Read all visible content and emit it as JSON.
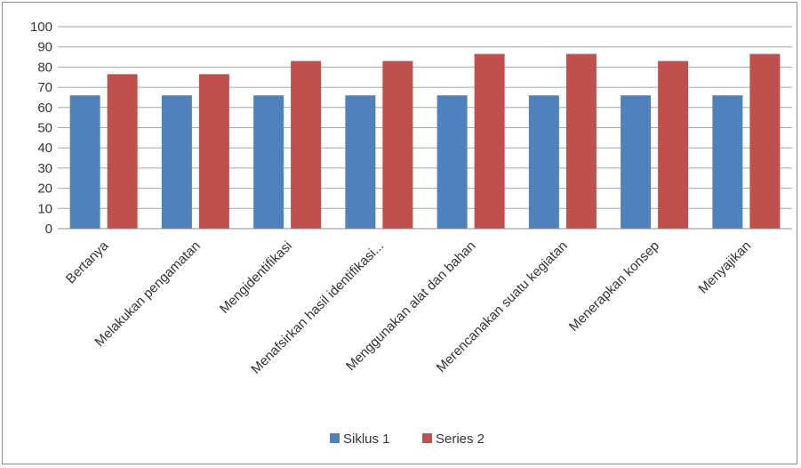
{
  "chart_data": {
    "type": "bar",
    "categories": [
      "Bertanya",
      "Melakukan pengamatan",
      "Mengidentifikasi",
      "Menafsirkan hasil identifikasi...",
      "Menggunakan alat dan bahan",
      "Merencanakan suatu kegiatan",
      "Menerapkan konsep",
      "Menyajikan"
    ],
    "series": [
      {
        "name": "Siklus 1",
        "color": "#4f81bd",
        "values": [
          66,
          66,
          66,
          66,
          66,
          66,
          66,
          66
        ]
      },
      {
        "name": "Series 2",
        "color": "#c0504d",
        "values": [
          76.5,
          76.5,
          83,
          83,
          86.5,
          86.5,
          83,
          86.5
        ]
      }
    ],
    "ylim": [
      0,
      100
    ],
    "yticks": [
      0,
      10,
      20,
      30,
      40,
      50,
      60,
      70,
      80,
      90,
      100
    ],
    "grid": true,
    "legend_position": "bottom"
  }
}
